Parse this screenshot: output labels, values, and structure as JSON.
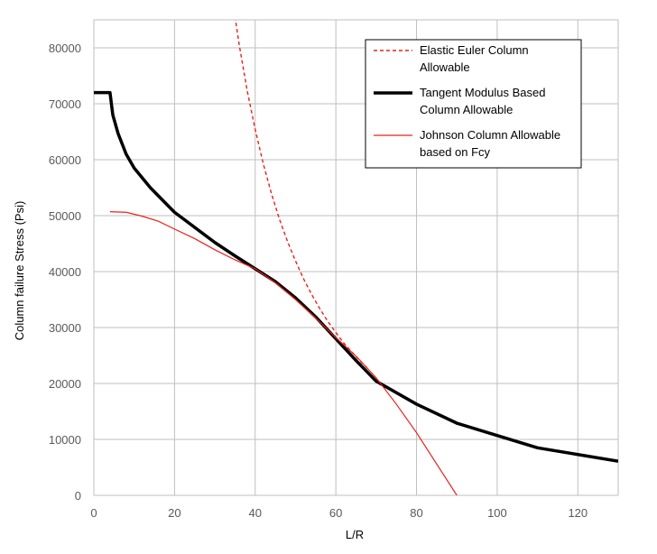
{
  "chart_data": {
    "type": "line",
    "title": "",
    "xlabel": "L/R",
    "ylabel": "Column failure Stress (Psi)",
    "xlim": [
      0,
      130
    ],
    "ylim": [
      0,
      85000
    ],
    "x_ticks": [
      0,
      20,
      40,
      60,
      80,
      100,
      120
    ],
    "y_ticks": [
      0,
      10000,
      20000,
      30000,
      40000,
      50000,
      60000,
      70000,
      80000
    ],
    "grid": true,
    "legend_position": "top-right",
    "series": [
      {
        "name": "Elastic Euler Column Allowable",
        "color": "#e8211a",
        "style": "dashed",
        "x": [
          35,
          36,
          38,
          40,
          42,
          44,
          46,
          48,
          50,
          52,
          54,
          56,
          58,
          60,
          62,
          64,
          66,
          68
        ],
        "y": [
          85600,
          80700,
          72400,
          65400,
          59300,
          54000,
          49400,
          45400,
          41900,
          38700,
          35900,
          33400,
          31100,
          29100,
          27200,
          25600,
          24000,
          22600
        ]
      },
      {
        "name": "Tangent Modulus Based Column Allowable",
        "color": "#000000",
        "style": "solid-thick",
        "x": [
          0,
          4,
          4.7,
          6,
          8,
          10,
          14,
          20,
          25,
          30,
          35,
          40,
          45,
          50,
          55,
          60,
          65,
          70,
          80,
          90,
          100,
          110,
          120,
          130
        ],
        "y": [
          72000,
          72000,
          68000,
          64700,
          61000,
          58500,
          55000,
          50600,
          47900,
          45200,
          42800,
          40500,
          38200,
          35300,
          31900,
          28000,
          24100,
          20400,
          16300,
          12900,
          10700,
          8500,
          7300,
          6100
        ]
      },
      {
        "name": "Johnson Column Allowable based on Fcy",
        "color": "#e8211a",
        "style": "solid",
        "x": [
          4,
          8,
          12,
          16,
          20,
          25,
          30,
          35,
          40,
          45,
          50,
          55,
          60,
          65,
          70,
          75,
          80,
          85,
          90
        ],
        "y": [
          50700,
          50600,
          49900,
          49000,
          47600,
          45900,
          43900,
          42100,
          40500,
          38000,
          35000,
          31700,
          28200,
          24900,
          21000,
          16300,
          11200,
          5600,
          0
        ]
      }
    ]
  }
}
